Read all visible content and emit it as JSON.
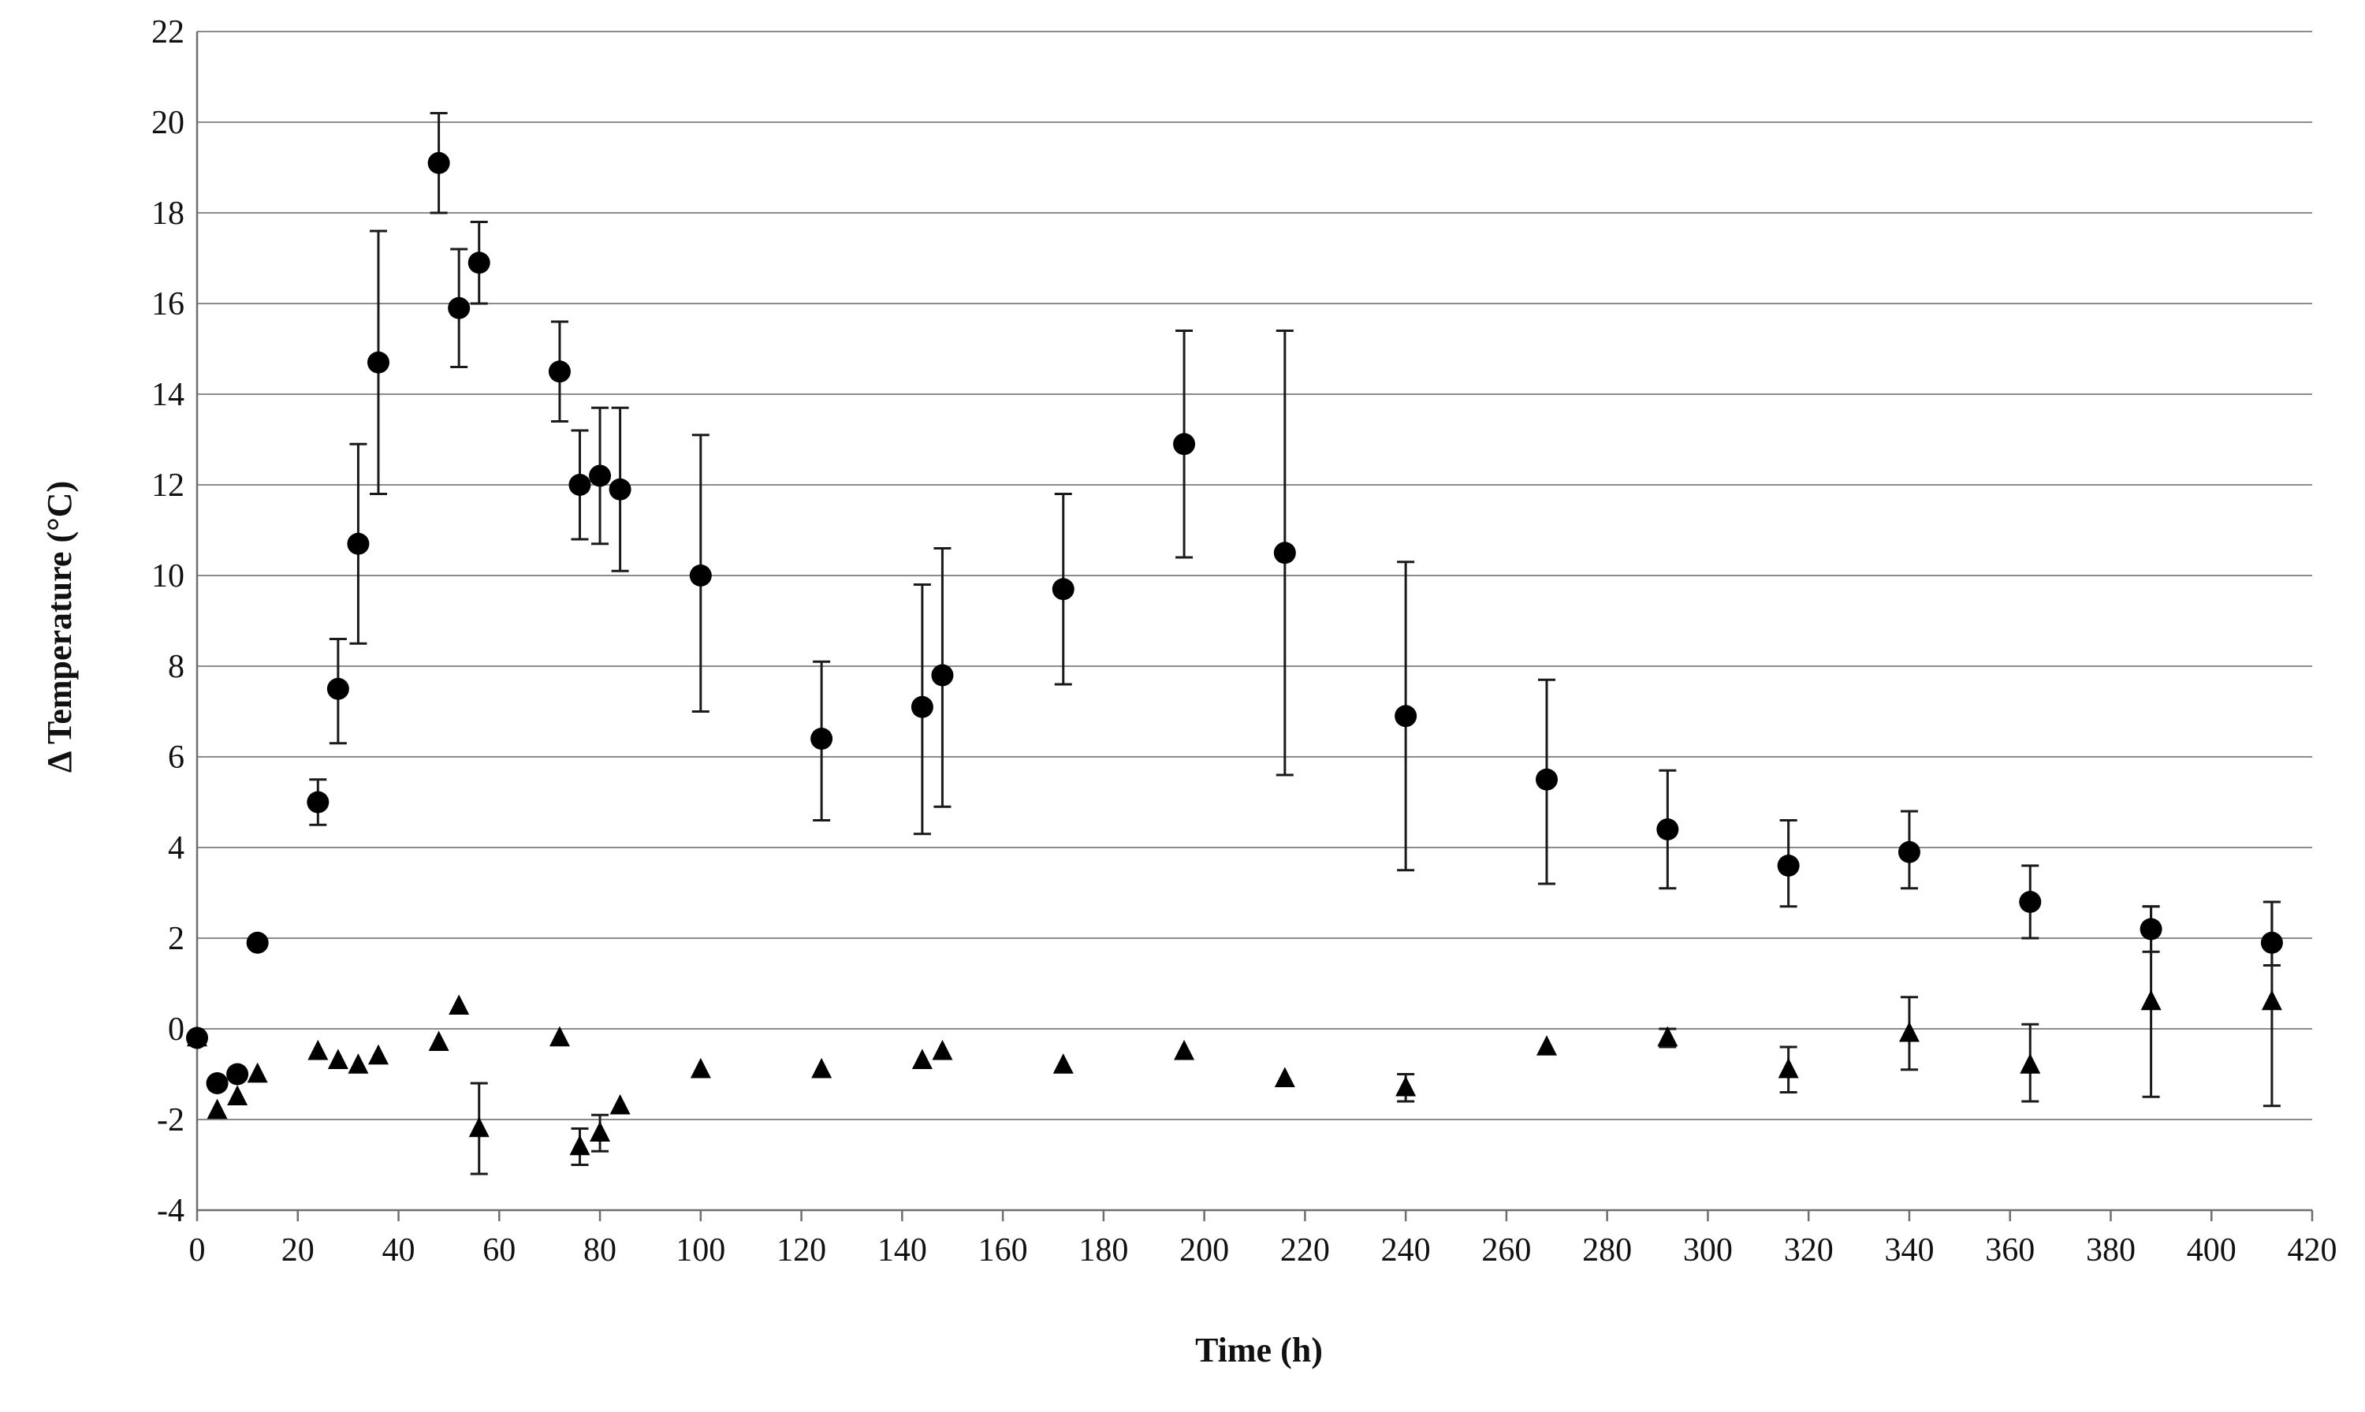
{
  "chart_data": {
    "type": "scatter",
    "title": "",
    "xlabel": "Time (h)",
    "ylabel": "Δ Temperature (°C)",
    "xlim": [
      0,
      420
    ],
    "ylim": [
      -4,
      22
    ],
    "x_ticks": [
      0,
      20,
      40,
      60,
      80,
      100,
      120,
      140,
      160,
      180,
      200,
      220,
      240,
      260,
      280,
      300,
      320,
      340,
      360,
      380,
      400,
      420
    ],
    "y_ticks": [
      -4,
      -2,
      0,
      2,
      4,
      6,
      8,
      10,
      12,
      14,
      16,
      18,
      20,
      22
    ],
    "grid": "horizontal",
    "legend": "none",
    "series": [
      {
        "marker": "circle",
        "color": "#000000",
        "x": [
          0,
          4,
          8,
          12,
          24,
          28,
          32,
          36,
          48,
          52,
          56,
          72,
          76,
          80,
          84,
          100,
          124,
          144,
          148,
          172,
          196,
          216,
          240,
          268,
          292,
          316,
          340,
          364,
          388,
          412
        ],
        "y": [
          -0.2,
          -1.2,
          -1.0,
          1.9,
          5.0,
          7.5,
          10.7,
          14.7,
          19.1,
          15.9,
          16.9,
          14.5,
          12.0,
          12.2,
          11.9,
          10.0,
          6.4,
          7.1,
          7.8,
          9.7,
          12.9,
          10.5,
          6.9,
          5.5,
          4.4,
          3.6,
          3.9,
          2.8,
          2.2,
          1.9
        ],
        "err_low": [
          null,
          null,
          null,
          null,
          0.5,
          1.2,
          2.2,
          2.9,
          1.1,
          1.3,
          0.9,
          1.1,
          1.2,
          1.5,
          1.8,
          3.0,
          1.8,
          2.8,
          2.9,
          2.1,
          2.5,
          4.9,
          3.4,
          2.3,
          1.3,
          0.9,
          0.8,
          0.8,
          0.5,
          0.5
        ],
        "err_high": [
          null,
          null,
          null,
          null,
          0.5,
          1.1,
          2.2,
          2.9,
          1.1,
          1.3,
          0.9,
          1.1,
          1.2,
          1.5,
          1.8,
          3.1,
          1.7,
          2.7,
          2.8,
          2.1,
          2.5,
          4.9,
          3.4,
          2.2,
          1.3,
          1.0,
          0.9,
          0.8,
          0.5,
          0.9
        ]
      },
      {
        "marker": "triangle",
        "color": "#000000",
        "x": [
          0,
          4,
          8,
          12,
          24,
          28,
          32,
          36,
          48,
          52,
          56,
          72,
          76,
          80,
          84,
          100,
          124,
          144,
          148,
          172,
          196,
          216,
          240,
          268,
          292,
          316,
          340,
          364,
          388,
          412
        ],
        "y": [
          -0.2,
          -1.8,
          -1.5,
          -1.0,
          -0.5,
          -0.7,
          -0.8,
          -0.6,
          -0.3,
          0.5,
          -2.2,
          -0.2,
          -2.6,
          -2.3,
          -1.7,
          -0.9,
          -0.9,
          -0.7,
          -0.5,
          -0.8,
          -0.5,
          -1.1,
          -1.3,
          -0.4,
          -0.2,
          -0.9,
          -0.1,
          -0.8,
          0.6,
          0.6
        ],
        "err_low": [
          null,
          null,
          null,
          null,
          null,
          null,
          null,
          null,
          null,
          null,
          1.0,
          null,
          0.4,
          0.4,
          null,
          null,
          null,
          null,
          null,
          null,
          null,
          null,
          0.3,
          null,
          0.2,
          0.5,
          0.8,
          0.8,
          2.1,
          2.3
        ],
        "err_high": [
          null,
          null,
          null,
          null,
          null,
          null,
          null,
          null,
          null,
          null,
          1.0,
          null,
          0.4,
          0.4,
          null,
          null,
          null,
          null,
          null,
          null,
          null,
          null,
          0.3,
          null,
          0.2,
          0.5,
          0.8,
          0.9,
          2.1,
          2.2
        ]
      }
    ]
  }
}
